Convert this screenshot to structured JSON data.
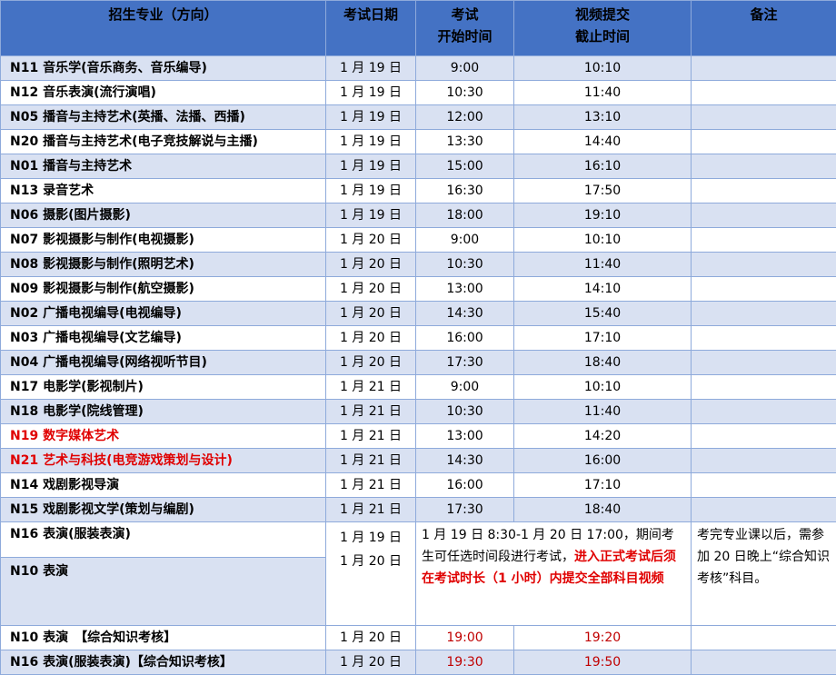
{
  "header": {
    "major": "招生专业（方向）",
    "date": "考试日期",
    "start": [
      "考试",
      "开始时间"
    ],
    "deadline": [
      "视频提交",
      "截止时间"
    ],
    "remark": "备注"
  },
  "rows": [
    {
      "name": "N11 音乐学(音乐商务、音乐编导)",
      "date": "1 月 19 日",
      "start": "9:00",
      "end": "10:10"
    },
    {
      "name": "N12 音乐表演(流行演唱)",
      "date": "1 月 19 日",
      "start": "10:30",
      "end": "11:40"
    },
    {
      "name": "N05 播音与主持艺术(英播、法播、西播)",
      "date": "1 月 19 日",
      "start": "12:00",
      "end": "13:10"
    },
    {
      "name": "N20 播音与主持艺术(电子竞技解说与主播)",
      "date": "1 月 19 日",
      "start": "13:30",
      "end": "14:40"
    },
    {
      "name": "N01 播音与主持艺术",
      "date": "1 月 19 日",
      "start": "15:00",
      "end": "16:10"
    },
    {
      "name": "N13 录音艺术",
      "date": "1 月 19 日",
      "start": "16:30",
      "end": "17:50"
    },
    {
      "name": "N06 摄影(图片摄影)",
      "date": "1 月 19 日",
      "start": "18:00",
      "end": "19:10"
    },
    {
      "name": "N07 影视摄影与制作(电视摄影)",
      "date": "1 月 20 日",
      "start": "9:00",
      "end": "10:10"
    },
    {
      "name": "N08 影视摄影与制作(照明艺术)",
      "date": "1 月 20 日",
      "start": "10:30",
      "end": "11:40"
    },
    {
      "name": "N09 影视摄影与制作(航空摄影)",
      "date": "1 月 20 日",
      "start": "13:00",
      "end": "14:10"
    },
    {
      "name": "N02 广播电视编导(电视编导)",
      "date": "1 月 20 日",
      "start": "14:30",
      "end": "15:40"
    },
    {
      "name": "N03 广播电视编导(文艺编导)",
      "date": "1 月 20 日",
      "start": "16:00",
      "end": "17:10"
    },
    {
      "name": "N04 广播电视编导(网络视听节目)",
      "date": "1 月 20 日",
      "start": "17:30",
      "end": "18:40"
    },
    {
      "name": "N17 电影学(影视制片)",
      "date": "1 月 21 日",
      "start": "9:00",
      "end": "10:10"
    },
    {
      "name": "N18 电影学(院线管理)",
      "date": "1 月 21 日",
      "start": "10:30",
      "end": "11:40"
    },
    {
      "name": "N19 数字媒体艺术",
      "date": "1 月 21 日",
      "start": "13:00",
      "end": "14:20",
      "red": true
    },
    {
      "name": "N21 艺术与科技(电竞游戏策划与设计)",
      "date": "1 月 21 日",
      "start": "14:30",
      "end": "16:00",
      "red": true
    },
    {
      "name": "N14 戏剧影视导演",
      "date": "1 月 21 日",
      "start": "16:00",
      "end": "17:10"
    },
    {
      "name": "N15 戏剧影视文学(策划与编剧)",
      "date": "1 月 21 日",
      "start": "17:30",
      "end": "18:40"
    }
  ],
  "merged": {
    "name1": "N16  表演(服装表演)",
    "name2": "N10 表演",
    "date1": "1 月 19 日",
    "date2": "1 月 20 日",
    "window": "1 月 19 日 8:30-1 月 20 日 17:00，期间考生可任选时间段进行考试，",
    "window_red": "进入正式考试后须在考试时长（1 小时）内提交全部科目视频",
    "remark": "考完专业课以后，需参加 20 日晚上“综合知识考核”科目。"
  },
  "final": [
    {
      "name": "N10 表演　【综合知识考核】",
      "date": "1 月 20 日",
      "start": "19:00",
      "end": "19:20"
    },
    {
      "name": "N16  表演(服装表演)【综合知识考核】",
      "date": "1 月 20 日",
      "start": "19:30",
      "end": "19:50"
    }
  ],
  "colors": {
    "header": "#4472c4",
    "band": "#d9e1f2",
    "red": "#e00000"
  }
}
